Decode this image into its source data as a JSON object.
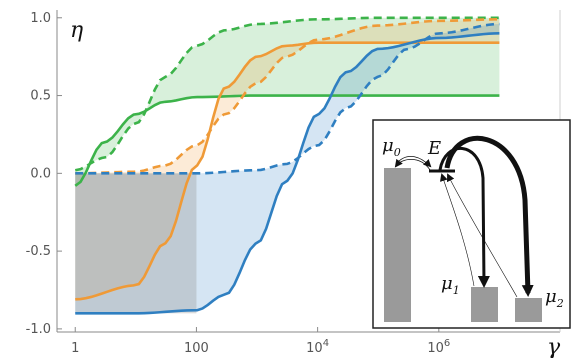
{
  "chart_data": {
    "type": "line",
    "title": "",
    "xlabel": "γ",
    "ylabel": "η",
    "x_scale": "log10",
    "xlim": [
      0.5,
      100000000
    ],
    "ylim": [
      -1.02,
      1.05
    ],
    "x_ticks": [
      {
        "value": 1,
        "label": "1"
      },
      {
        "value": 100,
        "label": "100"
      },
      {
        "value": 10000,
        "label": "10",
        "exp": "4"
      },
      {
        "value": 1000000,
        "label": "10",
        "exp": "6"
      }
    ],
    "y_ticks": [
      {
        "value": 1.0,
        "label": "1.0"
      },
      {
        "value": 0.5,
        "label": "0.5"
      },
      {
        "value": 0.0,
        "label": "0.0"
      },
      {
        "value": -0.5,
        "label": "-0.5"
      },
      {
        "value": -1.0,
        "label": "-1.0"
      }
    ],
    "grid": false,
    "colors": {
      "green": "#3cb34a",
      "orange": "#ef9a37",
      "blue": "#2f7fc1"
    },
    "series": [
      {
        "color": "green",
        "style": "solid",
        "x": [
          1,
          3,
          10,
          30,
          100,
          1000,
          10000,
          100000,
          10000000
        ],
        "y": [
          -0.08,
          0.2,
          0.38,
          0.46,
          0.49,
          0.5,
          0.5,
          0.5,
          0.5
        ]
      },
      {
        "color": "green",
        "style": "dashed",
        "x": [
          1,
          3,
          10,
          30,
          100,
          300,
          1000,
          10000,
          100000,
          10000000
        ],
        "y": [
          0.02,
          0.1,
          0.32,
          0.62,
          0.82,
          0.92,
          0.96,
          0.99,
          1.0,
          1.0
        ]
      },
      {
        "color": "orange",
        "style": "solid",
        "x": [
          1,
          10,
          30,
          100,
          300,
          1000,
          3000,
          10000,
          100000,
          10000000
        ],
        "y": [
          -0.81,
          -0.72,
          -0.45,
          0.05,
          0.55,
          0.75,
          0.82,
          0.84,
          0.84,
          0.84
        ]
      },
      {
        "color": "orange",
        "style": "dashed",
        "x": [
          1,
          10,
          30,
          100,
          300,
          1000,
          3000,
          10000,
          100000,
          1000000,
          10000000
        ],
        "y": [
          0.0,
          0.01,
          0.05,
          0.18,
          0.38,
          0.58,
          0.75,
          0.86,
          0.95,
          0.98,
          0.99
        ]
      },
      {
        "color": "blue",
        "style": "solid",
        "x": [
          1,
          10,
          100,
          300,
          1000,
          3000,
          10000,
          30000,
          100000,
          1000000,
          10000000
        ],
        "y": [
          -0.9,
          -0.9,
          -0.88,
          -0.78,
          -0.45,
          -0.05,
          0.38,
          0.65,
          0.8,
          0.87,
          0.9
        ]
      },
      {
        "color": "blue",
        "style": "dashed",
        "x": [
          1,
          100,
          1000,
          3000,
          10000,
          30000,
          100000,
          300000,
          1000000,
          10000000
        ],
        "y": [
          0.0,
          0.0,
          0.02,
          0.06,
          0.18,
          0.42,
          0.62,
          0.8,
          0.9,
          0.96
        ]
      }
    ],
    "inset": {
      "labels": {
        "mu0": "μ",
        "mu0_sub": "0",
        "E": "E",
        "mu1": "μ",
        "mu1_sub": "1",
        "mu2": "μ",
        "mu2_sub": "2"
      },
      "bar_levels": {
        "mu0": 0.5,
        "mu1": -0.72,
        "mu2": -0.8
      }
    }
  }
}
